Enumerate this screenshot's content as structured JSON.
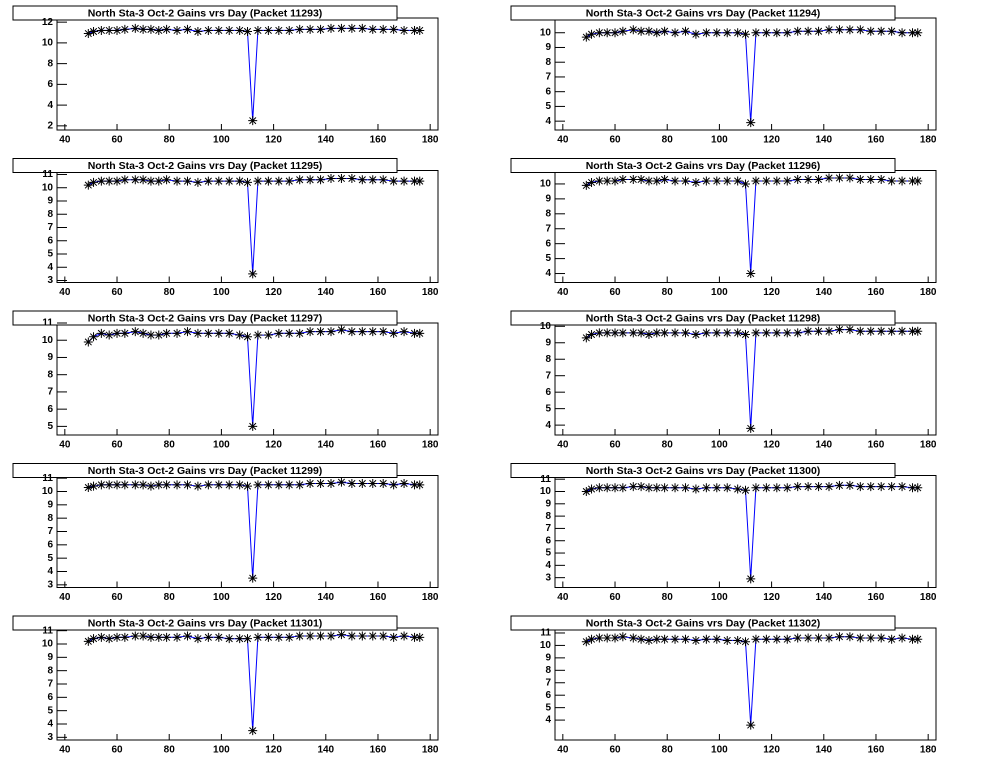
{
  "chart_data": [
    {
      "type": "scatter-line",
      "title": "North Sta-3 Oct-2 Gains vrs Day (Packet 11293)",
      "line_color": "#0000ff",
      "marker_color": "#000000",
      "x": [
        49,
        51,
        54,
        57,
        60,
        63,
        67,
        70,
        73,
        76,
        79,
        83,
        87,
        91,
        95,
        99,
        103,
        107,
        110,
        112,
        114,
        118,
        122,
        126,
        130,
        134,
        138,
        142,
        146,
        150,
        154,
        158,
        162,
        166,
        170,
        174,
        176
      ],
      "values": [
        10.9,
        11.1,
        11.2,
        11.2,
        11.2,
        11.3,
        11.4,
        11.3,
        11.3,
        11.2,
        11.3,
        11.2,
        11.3,
        11.1,
        11.2,
        11.2,
        11.2,
        11.2,
        11.1,
        2.5,
        11.2,
        11.2,
        11.2,
        11.2,
        11.3,
        11.3,
        11.3,
        11.4,
        11.4,
        11.4,
        11.4,
        11.3,
        11.3,
        11.3,
        11.2,
        11.2,
        11.2
      ],
      "xlim": [
        37,
        183
      ],
      "xticks": [
        40,
        60,
        80,
        100,
        120,
        140,
        160,
        180
      ],
      "ylim": [
        1.6,
        12.4
      ],
      "yticks": [
        2,
        4,
        6,
        8,
        10,
        12
      ]
    },
    {
      "type": "scatter-line",
      "title": "North Sta-3 Oct-2 Gains vrs Day (Packet 11294)",
      "line_color": "#0000ff",
      "marker_color": "#000000",
      "x": [
        49,
        51,
        54,
        57,
        60,
        63,
        67,
        70,
        73,
        76,
        79,
        83,
        87,
        91,
        95,
        99,
        103,
        107,
        110,
        112,
        114,
        118,
        122,
        126,
        130,
        134,
        138,
        142,
        146,
        150,
        154,
        158,
        162,
        166,
        170,
        174,
        176
      ],
      "values": [
        9.7,
        9.9,
        10,
        10,
        10,
        10.1,
        10.2,
        10.1,
        10.1,
        10,
        10.1,
        10,
        10.1,
        9.9,
        10,
        10,
        10,
        10,
        9.9,
        3.9,
        10,
        10,
        10,
        10,
        10.1,
        10.1,
        10.1,
        10.2,
        10.2,
        10.2,
        10.2,
        10.1,
        10.1,
        10.1,
        10,
        10,
        10
      ],
      "xlim": [
        37,
        183
      ],
      "xticks": [
        40,
        60,
        80,
        100,
        120,
        140,
        160,
        180
      ],
      "ylim": [
        3.4,
        11
      ],
      "yticks": [
        4,
        5,
        6,
        7,
        8,
        9,
        10
      ]
    },
    {
      "type": "scatter-line",
      "title": "North Sta-3 Oct-2 Gains vrs Day (Packet 11295)",
      "line_color": "#0000ff",
      "marker_color": "#000000",
      "x": [
        49,
        51,
        54,
        57,
        60,
        63,
        67,
        70,
        73,
        76,
        79,
        83,
        87,
        91,
        95,
        99,
        103,
        107,
        110,
        112,
        114,
        118,
        122,
        126,
        130,
        134,
        138,
        142,
        146,
        150,
        154,
        158,
        162,
        166,
        170,
        174,
        176
      ],
      "values": [
        10.2,
        10.4,
        10.5,
        10.5,
        10.5,
        10.6,
        10.6,
        10.6,
        10.5,
        10.5,
        10.6,
        10.5,
        10.5,
        10.4,
        10.5,
        10.5,
        10.5,
        10.5,
        10.4,
        3.5,
        10.5,
        10.5,
        10.5,
        10.5,
        10.6,
        10.6,
        10.6,
        10.7,
        10.7,
        10.7,
        10.6,
        10.6,
        10.6,
        10.5,
        10.5,
        10.5,
        10.5
      ],
      "xlim": [
        37,
        183
      ],
      "xticks": [
        40,
        60,
        80,
        100,
        120,
        140,
        160,
        180
      ],
      "ylim": [
        2.85,
        11.3
      ],
      "yticks": [
        3,
        4,
        5,
        6,
        7,
        8,
        9,
        10,
        11
      ]
    },
    {
      "type": "scatter-line",
      "title": "North Sta-3 Oct-2 Gains vrs Day (Packet 11296)",
      "line_color": "#0000ff",
      "marker_color": "#000000",
      "x": [
        49,
        51,
        54,
        57,
        60,
        63,
        67,
        70,
        73,
        76,
        79,
        83,
        87,
        91,
        95,
        99,
        103,
        107,
        110,
        112,
        114,
        118,
        122,
        126,
        130,
        134,
        138,
        142,
        146,
        150,
        154,
        158,
        162,
        166,
        170,
        174,
        176
      ],
      "values": [
        9.9,
        10.1,
        10.2,
        10.2,
        10.2,
        10.3,
        10.3,
        10.3,
        10.2,
        10.2,
        10.3,
        10.2,
        10.2,
        10.1,
        10.2,
        10.2,
        10.2,
        10.2,
        10.0,
        4.0,
        10.2,
        10.2,
        10.2,
        10.2,
        10.3,
        10.3,
        10.3,
        10.4,
        10.4,
        10.4,
        10.3,
        10.3,
        10.3,
        10.2,
        10.2,
        10.2,
        10.2
      ],
      "xlim": [
        37,
        183
      ],
      "xticks": [
        40,
        60,
        80,
        100,
        120,
        140,
        160,
        180
      ],
      "ylim": [
        3.4,
        10.9
      ],
      "yticks": [
        4,
        5,
        6,
        7,
        8,
        9,
        10
      ]
    },
    {
      "type": "scatter-line",
      "title": "North Sta-3 Oct-2 Gains vrs Day (Packet 11297)",
      "line_color": "#0000ff",
      "marker_color": "#000000",
      "x": [
        49,
        51,
        54,
        57,
        60,
        63,
        67,
        70,
        73,
        76,
        79,
        83,
        87,
        91,
        95,
        99,
        103,
        107,
        110,
        112,
        114,
        118,
        122,
        126,
        130,
        134,
        138,
        142,
        146,
        150,
        154,
        158,
        162,
        166,
        170,
        174,
        176
      ],
      "values": [
        9.9,
        10.2,
        10.4,
        10.3,
        10.4,
        10.4,
        10.5,
        10.4,
        10.3,
        10.3,
        10.4,
        10.4,
        10.5,
        10.4,
        10.4,
        10.4,
        10.4,
        10.3,
        10.2,
        5.0,
        10.3,
        10.3,
        10.4,
        10.4,
        10.4,
        10.5,
        10.5,
        10.5,
        10.6,
        10.5,
        10.5,
        10.5,
        10.5,
        10.4,
        10.5,
        10.4,
        10.4
      ],
      "xlim": [
        37,
        183
      ],
      "xticks": [
        40,
        60,
        80,
        100,
        120,
        140,
        160,
        180
      ],
      "ylim": [
        4.5,
        11
      ],
      "yticks": [
        5,
        6,
        7,
        8,
        9,
        10,
        11
      ]
    },
    {
      "type": "scatter-line",
      "title": "North Sta-3 Oct-2 Gains vrs Day (Packet 11298)",
      "line_color": "#0000ff",
      "marker_color": "#000000",
      "x": [
        49,
        51,
        54,
        57,
        60,
        63,
        67,
        70,
        73,
        76,
        79,
        83,
        87,
        91,
        95,
        99,
        103,
        107,
        110,
        112,
        114,
        118,
        122,
        126,
        130,
        134,
        138,
        142,
        146,
        150,
        154,
        158,
        162,
        166,
        170,
        174,
        176
      ],
      "values": [
        9.3,
        9.5,
        9.6,
        9.6,
        9.6,
        9.6,
        9.6,
        9.6,
        9.5,
        9.6,
        9.6,
        9.6,
        9.6,
        9.5,
        9.6,
        9.6,
        9.6,
        9.6,
        9.5,
        3.8,
        9.6,
        9.6,
        9.6,
        9.6,
        9.6,
        9.7,
        9.7,
        9.7,
        9.8,
        9.8,
        9.7,
        9.7,
        9.7,
        9.7,
        9.7,
        9.7,
        9.7
      ],
      "xlim": [
        37,
        183
      ],
      "xticks": [
        40,
        60,
        80,
        100,
        120,
        140,
        160,
        180
      ],
      "ylim": [
        3.4,
        10.2
      ],
      "yticks": [
        4,
        5,
        6,
        7,
        8,
        9,
        10
      ]
    },
    {
      "type": "scatter-line",
      "title": "North Sta-3 Oct-2 Gains vrs Day (Packet 11299)",
      "line_color": "#0000ff",
      "marker_color": "#000000",
      "x": [
        49,
        51,
        54,
        57,
        60,
        63,
        67,
        70,
        73,
        76,
        79,
        83,
        87,
        91,
        95,
        99,
        103,
        107,
        110,
        112,
        114,
        118,
        122,
        126,
        130,
        134,
        138,
        142,
        146,
        150,
        154,
        158,
        162,
        166,
        170,
        174,
        176
      ],
      "values": [
        10.3,
        10.4,
        10.5,
        10.5,
        10.5,
        10.5,
        10.5,
        10.5,
        10.4,
        10.5,
        10.5,
        10.5,
        10.5,
        10.4,
        10.5,
        10.5,
        10.5,
        10.5,
        10.4,
        3.5,
        10.5,
        10.5,
        10.5,
        10.5,
        10.5,
        10.6,
        10.6,
        10.6,
        10.7,
        10.6,
        10.6,
        10.6,
        10.6,
        10.5,
        10.6,
        10.5,
        10.5
      ],
      "xlim": [
        37,
        183
      ],
      "xticks": [
        40,
        60,
        80,
        100,
        120,
        140,
        160,
        180
      ],
      "ylim": [
        2.8,
        11.2
      ],
      "yticks": [
        3,
        4,
        5,
        6,
        7,
        8,
        9,
        10,
        11
      ]
    },
    {
      "type": "scatter-line",
      "title": "North Sta-3 Oct-2 Gains vrs Day (Packet 11300)",
      "line_color": "#0000ff",
      "marker_color": "#000000",
      "x": [
        49,
        51,
        54,
        57,
        60,
        63,
        67,
        70,
        73,
        76,
        79,
        83,
        87,
        91,
        95,
        99,
        103,
        107,
        110,
        112,
        114,
        118,
        122,
        126,
        130,
        134,
        138,
        142,
        146,
        150,
        154,
        158,
        162,
        166,
        170,
        174,
        176
      ],
      "values": [
        10.0,
        10.2,
        10.3,
        10.3,
        10.3,
        10.3,
        10.4,
        10.4,
        10.3,
        10.3,
        10.3,
        10.3,
        10.3,
        10.2,
        10.3,
        10.3,
        10.3,
        10.2,
        10.1,
        2.9,
        10.3,
        10.3,
        10.3,
        10.3,
        10.4,
        10.4,
        10.4,
        10.4,
        10.5,
        10.5,
        10.4,
        10.4,
        10.4,
        10.4,
        10.4,
        10.3,
        10.3
      ],
      "xlim": [
        37,
        183
      ],
      "xticks": [
        40,
        60,
        80,
        100,
        120,
        140,
        160,
        180
      ],
      "ylim": [
        2.2,
        11.3
      ],
      "yticks": [
        3,
        4,
        5,
        6,
        7,
        8,
        9,
        10,
        11
      ]
    },
    {
      "type": "scatter-line",
      "title": "North Sta-3 Oct-2 Gains vrs Day (Packet 11301)",
      "line_color": "#0000ff",
      "marker_color": "#000000",
      "x": [
        49,
        51,
        54,
        57,
        60,
        63,
        67,
        70,
        73,
        76,
        79,
        83,
        87,
        91,
        95,
        99,
        103,
        107,
        110,
        112,
        114,
        118,
        122,
        126,
        130,
        134,
        138,
        142,
        146,
        150,
        154,
        158,
        162,
        166,
        170,
        174,
        176
      ],
      "values": [
        10.2,
        10.4,
        10.5,
        10.4,
        10.5,
        10.5,
        10.6,
        10.6,
        10.5,
        10.5,
        10.5,
        10.5,
        10.6,
        10.4,
        10.5,
        10.5,
        10.4,
        10.4,
        10.4,
        3.5,
        10.5,
        10.5,
        10.5,
        10.5,
        10.6,
        10.6,
        10.6,
        10.6,
        10.7,
        10.6,
        10.6,
        10.6,
        10.6,
        10.5,
        10.6,
        10.5,
        10.5
      ],
      "xlim": [
        37,
        183
      ],
      "xticks": [
        40,
        60,
        80,
        100,
        120,
        140,
        160,
        180
      ],
      "ylim": [
        2.8,
        11.2
      ],
      "yticks": [
        3,
        4,
        5,
        6,
        7,
        8,
        9,
        10,
        11
      ]
    },
    {
      "type": "scatter-line",
      "title": "North Sta-3 Oct-2 Gains vrs Day (Packet 11302)",
      "line_color": "#0000ff",
      "marker_color": "#000000",
      "x": [
        49,
        51,
        54,
        57,
        60,
        63,
        67,
        70,
        73,
        76,
        79,
        83,
        87,
        91,
        95,
        99,
        103,
        107,
        110,
        112,
        114,
        118,
        122,
        126,
        130,
        134,
        138,
        142,
        146,
        150,
        154,
        158,
        162,
        166,
        170,
        174,
        176
      ],
      "values": [
        10.3,
        10.5,
        10.6,
        10.6,
        10.6,
        10.7,
        10.6,
        10.5,
        10.4,
        10.5,
        10.5,
        10.5,
        10.5,
        10.4,
        10.5,
        10.5,
        10.4,
        10.4,
        10.3,
        3.6,
        10.5,
        10.5,
        10.5,
        10.5,
        10.6,
        10.6,
        10.6,
        10.6,
        10.7,
        10.7,
        10.6,
        10.6,
        10.6,
        10.5,
        10.6,
        10.5,
        10.5
      ],
      "xlim": [
        37,
        183
      ],
      "xticks": [
        40,
        60,
        80,
        100,
        120,
        140,
        160,
        180
      ],
      "ylim": [
        2.4,
        11.4
      ],
      "yticks": [
        4,
        5,
        6,
        7,
        8,
        9,
        10,
        11
      ]
    }
  ]
}
